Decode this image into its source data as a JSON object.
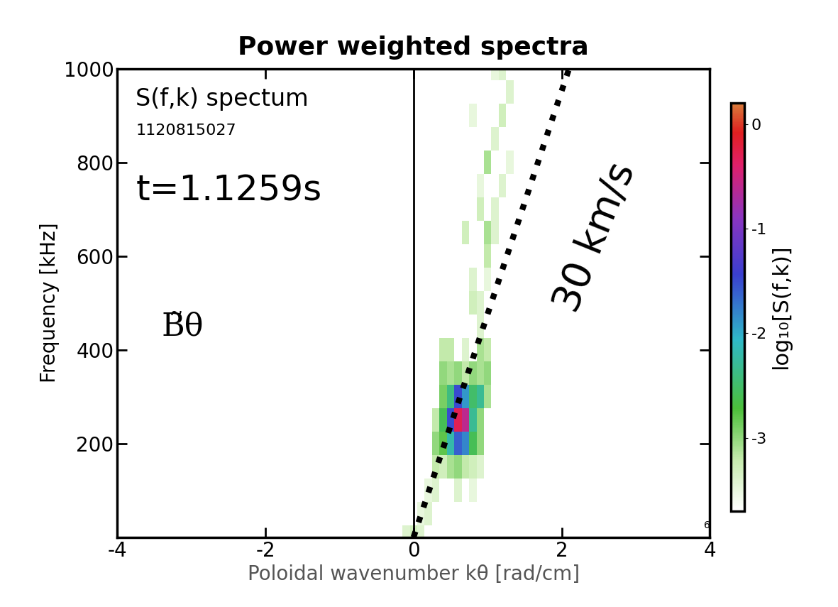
{
  "chart_data": {
    "type": "heatmap",
    "title": "Power weighted spectra",
    "x_label": "Poloidal wavenumber kθ [rad/cm]",
    "y_label": "Frequency [kHz]",
    "x": [
      -0.2,
      -0.1,
      0,
      0.1,
      0.2,
      0.3,
      0.4,
      0.5,
      0.6,
      0.7,
      0.8,
      0.9,
      1.0,
      1.1,
      1.2,
      1.3,
      1.4
    ],
    "y": [
      0,
      50,
      100,
      150,
      200,
      250,
      300,
      350,
      400,
      450,
      500,
      550,
      600,
      650,
      700,
      750,
      800,
      850,
      900,
      950,
      1000
    ],
    "values": [
      [
        null,
        -3.4,
        -3.3,
        -3.4,
        null,
        null,
        null,
        null,
        null,
        null,
        null,
        null,
        null,
        null,
        null,
        null,
        null
      ],
      [
        null,
        null,
        null,
        -3.5,
        -3.4,
        null,
        null,
        null,
        null,
        null,
        null,
        null,
        null,
        null,
        null,
        null,
        null
      ],
      [
        null,
        null,
        null,
        null,
        -3.5,
        -3.4,
        null,
        null,
        -3.4,
        null,
        -3.5,
        null,
        null,
        null,
        null,
        null,
        null
      ],
      [
        null,
        null,
        null,
        null,
        null,
        -3.2,
        -3.3,
        -3.1,
        -3.0,
        -3.2,
        -3.3,
        -3.4,
        null,
        null,
        null,
        null,
        null
      ],
      [
        null,
        null,
        null,
        null,
        null,
        -3.0,
        -2.8,
        -2.2,
        -1.6,
        -1.8,
        -2.6,
        -3.0,
        null,
        null,
        null,
        null,
        null
      ],
      [
        null,
        null,
        null,
        null,
        null,
        -3.2,
        -2.6,
        -1.5,
        -0.3,
        -0.6,
        -2.3,
        -3.0,
        null,
        null,
        null,
        null,
        null
      ],
      [
        null,
        null,
        null,
        null,
        null,
        null,
        -2.9,
        -2.4,
        -1.5,
        -1.9,
        -2.5,
        -2.3,
        -3.1,
        null,
        null,
        null,
        null
      ],
      [
        null,
        null,
        null,
        null,
        null,
        null,
        -3.0,
        -3.1,
        -3.0,
        -3.2,
        -3.0,
        -3.1,
        -3.0,
        null,
        null,
        null,
        null
      ],
      [
        null,
        null,
        null,
        null,
        null,
        null,
        -3.2,
        -3.2,
        null,
        -3.4,
        null,
        -3.1,
        -3.2,
        null,
        null,
        null,
        null
      ],
      [
        null,
        null,
        null,
        null,
        null,
        null,
        null,
        null,
        null,
        null,
        null,
        -3.4,
        null,
        null,
        null,
        null,
        null
      ],
      [
        null,
        null,
        null,
        null,
        null,
        null,
        null,
        null,
        null,
        null,
        -3.3,
        -3.4,
        null,
        null,
        null,
        null,
        null
      ],
      [
        null,
        null,
        null,
        null,
        null,
        null,
        null,
        null,
        null,
        null,
        -3.4,
        null,
        -3.5,
        null,
        null,
        null,
        null
      ],
      [
        null,
        null,
        null,
        null,
        null,
        null,
        null,
        null,
        null,
        null,
        null,
        null,
        -3.2,
        null,
        null,
        null,
        null
      ],
      [
        null,
        null,
        null,
        null,
        null,
        null,
        null,
        null,
        null,
        -3.3,
        null,
        null,
        -3.1,
        -3.4,
        null,
        null,
        null
      ],
      [
        null,
        null,
        null,
        null,
        null,
        null,
        null,
        null,
        null,
        null,
        null,
        -3.3,
        null,
        -3.4,
        null,
        null,
        null
      ],
      [
        null,
        null,
        null,
        null,
        null,
        null,
        null,
        null,
        null,
        null,
        null,
        -3.5,
        null,
        null,
        -3.4,
        null,
        null
      ],
      [
        null,
        null,
        null,
        null,
        null,
        null,
        null,
        null,
        null,
        null,
        null,
        null,
        -3.1,
        null,
        null,
        -3.5,
        null
      ],
      [
        null,
        null,
        null,
        null,
        null,
        null,
        null,
        null,
        null,
        null,
        null,
        null,
        null,
        -3.4,
        null,
        null,
        null
      ],
      [
        null,
        null,
        null,
        null,
        null,
        null,
        null,
        null,
        null,
        null,
        -3.5,
        null,
        null,
        null,
        -3.3,
        null,
        null
      ],
      [
        null,
        null,
        null,
        null,
        null,
        null,
        null,
        null,
        null,
        null,
        null,
        null,
        null,
        null,
        null,
        -3.4,
        null
      ],
      [
        null,
        null,
        null,
        null,
        null,
        null,
        null,
        null,
        null,
        null,
        null,
        null,
        null,
        -3.5,
        -3.4,
        null,
        null
      ]
    ],
    "xlim": [
      -4,
      4
    ],
    "xticks": [
      -4,
      -2,
      0,
      2,
      4
    ],
    "ylim": [
      0,
      1000
    ],
    "yticks": [
      200,
      400,
      600,
      800,
      1000
    ],
    "grid": false,
    "vline": 0,
    "colorbar": {
      "label": "log₁₀[S(f,k)]",
      "range": [
        -3.7,
        0.2
      ],
      "ticks": [
        -3,
        -2,
        -1,
        0
      ]
    },
    "reference_line": {
      "label": "30 km/s",
      "x": [
        0,
        2.1
      ],
      "y": [
        0,
        1000
      ],
      "line_style": "dotted",
      "color": "#000000"
    },
    "annotations": [
      "S(f,k) spectum",
      "1120815027",
      "t=1.1259s",
      "B̃θ",
      "6"
    ]
  }
}
